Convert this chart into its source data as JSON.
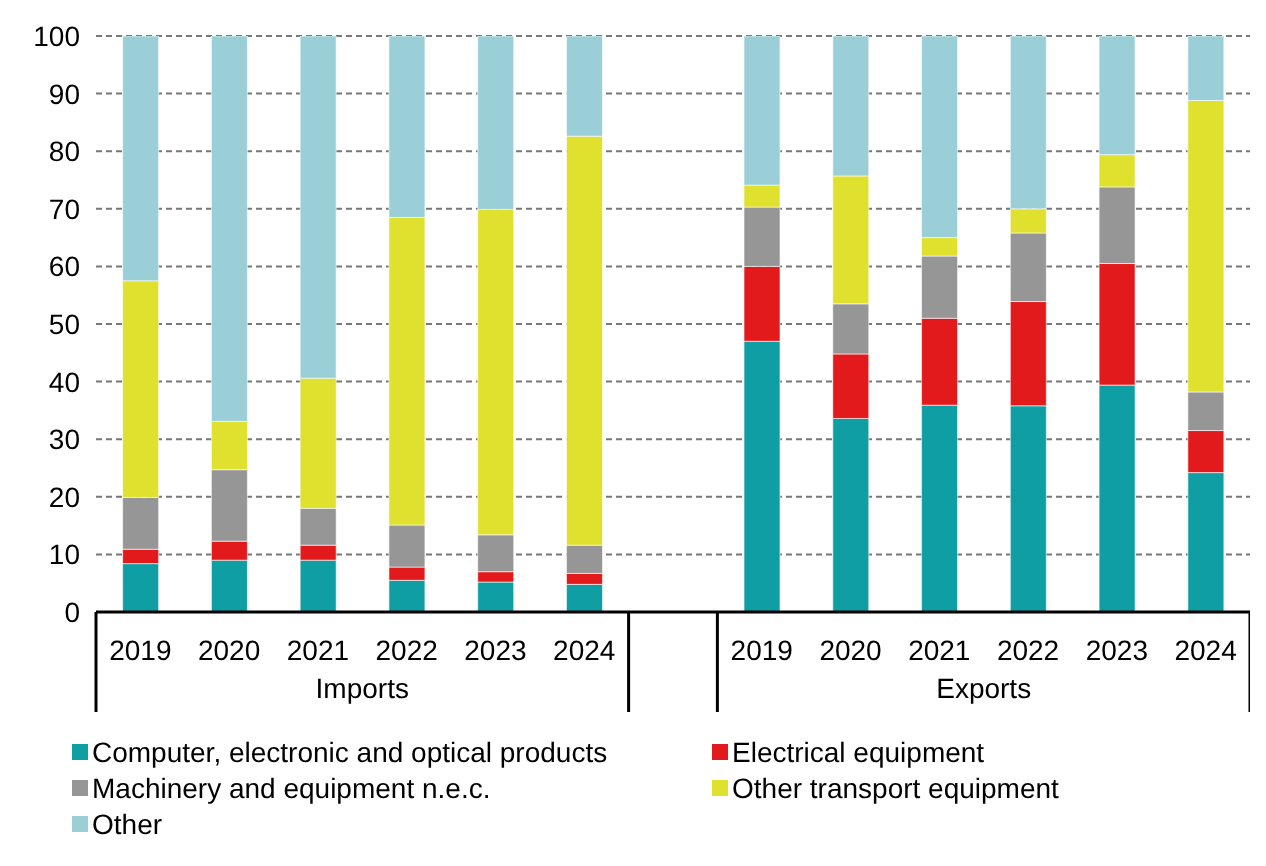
{
  "chart_data": {
    "type": "bar",
    "stacked": true,
    "categories": [
      "2019",
      "2020",
      "2021",
      "2022",
      "2023",
      "2024",
      null,
      "2019",
      "2020",
      "2021",
      "2022",
      "2023",
      "2024"
    ],
    "series": [
      {
        "name": "Computer, electronic and optical products",
        "color": "#0f9ea4",
        "values": [
          8.4,
          9.0,
          9.0,
          5.5,
          5.2,
          4.8,
          null,
          47.0,
          33.6,
          35.9,
          35.8,
          39.4,
          24.2
        ]
      },
      {
        "name": "Electrical equipment",
        "color": "#e31a1c",
        "values": [
          2.5,
          3.3,
          2.6,
          2.3,
          1.8,
          1.9,
          null,
          13.0,
          11.2,
          15.1,
          18.1,
          21.1,
          7.3
        ]
      },
      {
        "name": "Machinery and equipment n.e.c.",
        "color": "#969696",
        "values": [
          9.0,
          12.4,
          6.4,
          7.3,
          6.4,
          4.9,
          null,
          10.3,
          8.7,
          10.8,
          11.9,
          13.3,
          6.7
        ]
      },
      {
        "name": "Other transport equipment",
        "color": "#e0e02e",
        "values": [
          37.6,
          8.4,
          22.6,
          53.4,
          56.5,
          71.0,
          null,
          3.8,
          22.2,
          3.2,
          4.2,
          5.6,
          50.6
        ]
      },
      {
        "name": "Other",
        "color": "#9bcfd8",
        "values": [
          42.5,
          66.9,
          59.4,
          31.5,
          30.1,
          17.4,
          null,
          25.9,
          24.3,
          35.0,
          30.0,
          20.6,
          11.2
        ]
      }
    ],
    "ylim": [
      0,
      100
    ],
    "yticks": [
      0,
      10,
      20,
      30,
      40,
      50,
      60,
      70,
      80,
      90,
      100
    ],
    "grid": "y",
    "legend": "bottom",
    "annotations": [
      "Imports",
      "Exports"
    ]
  }
}
